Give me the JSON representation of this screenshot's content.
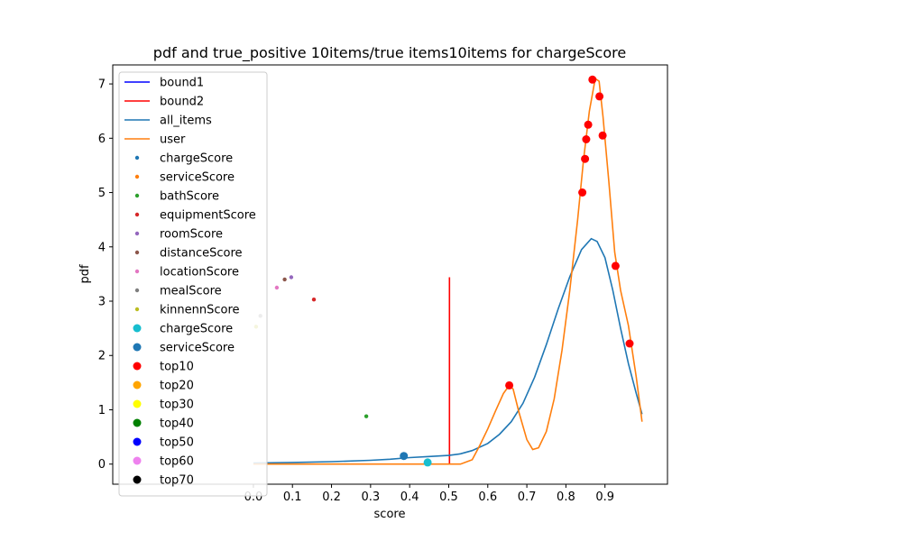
{
  "chart_data": {
    "type": "line",
    "title": "pdf and true_positive 10items/true items10items for chargeScore",
    "xlabel": "score",
    "ylabel": "pdf",
    "xlim": [
      -0.36,
      1.06
    ],
    "ylim": [
      -0.37,
      7.35
    ],
    "xticks": [
      0.0,
      0.1,
      0.2,
      0.3,
      0.4,
      0.5,
      0.6,
      0.7,
      0.8,
      0.9
    ],
    "yticks": [
      0,
      1,
      2,
      3,
      4,
      5,
      6,
      7
    ],
    "grid": false,
    "legend_position": "upper-left",
    "lines": [
      {
        "name": "bound1",
        "color": "#0000ff",
        "points": []
      },
      {
        "name": "bound2",
        "color": "#ff0000",
        "points": [
          [
            0.502,
            0.0
          ],
          [
            0.502,
            3.44
          ]
        ]
      },
      {
        "name": "all_items",
        "color": "#1f77b4",
        "points": [
          [
            0.0,
            0.02
          ],
          [
            0.1,
            0.03
          ],
          [
            0.2,
            0.045
          ],
          [
            0.3,
            0.07
          ],
          [
            0.35,
            0.09
          ],
          [
            0.4,
            0.12
          ],
          [
            0.45,
            0.14
          ],
          [
            0.5,
            0.16
          ],
          [
            0.53,
            0.19
          ],
          [
            0.56,
            0.25
          ],
          [
            0.6,
            0.38
          ],
          [
            0.63,
            0.55
          ],
          [
            0.66,
            0.78
          ],
          [
            0.69,
            1.12
          ],
          [
            0.72,
            1.6
          ],
          [
            0.75,
            2.2
          ],
          [
            0.78,
            2.85
          ],
          [
            0.81,
            3.45
          ],
          [
            0.84,
            3.95
          ],
          [
            0.865,
            4.15
          ],
          [
            0.88,
            4.1
          ],
          [
            0.9,
            3.8
          ],
          [
            0.92,
            3.2
          ],
          [
            0.94,
            2.5
          ],
          [
            0.96,
            1.85
          ],
          [
            0.98,
            1.3
          ],
          [
            0.995,
            0.92
          ]
        ]
      },
      {
        "name": "user",
        "color": "#ff7f0e",
        "points": [
          [
            0.0,
            0.0
          ],
          [
            0.1,
            0.0
          ],
          [
            0.2,
            0.0
          ],
          [
            0.3,
            0.0
          ],
          [
            0.4,
            0.0
          ],
          [
            0.5,
            0.0
          ],
          [
            0.53,
            0.0
          ],
          [
            0.56,
            0.08
          ],
          [
            0.58,
            0.35
          ],
          [
            0.6,
            0.65
          ],
          [
            0.62,
            0.98
          ],
          [
            0.64,
            1.3
          ],
          [
            0.655,
            1.45
          ],
          [
            0.665,
            1.38
          ],
          [
            0.68,
            0.95
          ],
          [
            0.7,
            0.45
          ],
          [
            0.715,
            0.27
          ],
          [
            0.73,
            0.3
          ],
          [
            0.75,
            0.6
          ],
          [
            0.77,
            1.2
          ],
          [
            0.79,
            2.1
          ],
          [
            0.81,
            3.2
          ],
          [
            0.83,
            4.5
          ],
          [
            0.845,
            5.6
          ],
          [
            0.86,
            6.5
          ],
          [
            0.875,
            7.1
          ],
          [
            0.885,
            7.05
          ],
          [
            0.895,
            6.4
          ],
          [
            0.91,
            5.2
          ],
          [
            0.925,
            3.9
          ],
          [
            0.94,
            3.2
          ],
          [
            0.96,
            2.55
          ],
          [
            0.98,
            1.6
          ],
          [
            0.995,
            0.78
          ]
        ]
      }
    ],
    "scatter_series": [
      {
        "name": "chargeScore",
        "color": "#1f77b4",
        "size": "small",
        "points": []
      },
      {
        "name": "serviceScore",
        "color": "#ff7f0e",
        "size": "small",
        "points": []
      },
      {
        "name": "bathScore",
        "color": "#2ca02c",
        "size": "small",
        "points": [
          [
            0.289,
            0.88
          ]
        ]
      },
      {
        "name": "equipmentScore",
        "color": "#d62728",
        "size": "small",
        "points": [
          [
            0.155,
            3.03
          ]
        ]
      },
      {
        "name": "roomScore",
        "color": "#9467bd",
        "size": "small",
        "points": [
          [
            0.097,
            3.44
          ]
        ]
      },
      {
        "name": "distanceScore",
        "color": "#8c564b",
        "size": "small",
        "points": [
          [
            0.08,
            3.4
          ]
        ]
      },
      {
        "name": "locationScore",
        "color": "#e377c2",
        "size": "small",
        "points": [
          [
            0.06,
            3.25
          ]
        ]
      },
      {
        "name": "mealScore",
        "color": "#7f7f7f",
        "size": "small",
        "points": [
          [
            0.018,
            2.73
          ]
        ]
      },
      {
        "name": "kinnennScore",
        "color": "#bcbd22",
        "size": "small",
        "points": [
          [
            0.007,
            2.53
          ]
        ]
      },
      {
        "name": "chargeScore",
        "color": "#17becf",
        "size": "large",
        "points": [
          [
            0.446,
            0.03
          ]
        ]
      },
      {
        "name": "serviceScore",
        "color": "#1f77b4",
        "size": "large",
        "points": [
          [
            0.385,
            0.15
          ]
        ]
      },
      {
        "name": "top10",
        "color": "#ff0000",
        "size": "large",
        "points": [
          [
            0.655,
            1.45
          ],
          [
            0.842,
            5.0
          ],
          [
            0.849,
            5.62
          ],
          [
            0.852,
            5.98
          ],
          [
            0.857,
            6.25
          ],
          [
            0.868,
            7.08
          ],
          [
            0.886,
            6.77
          ],
          [
            0.894,
            6.05
          ],
          [
            0.927,
            3.65
          ],
          [
            0.963,
            2.22
          ]
        ]
      },
      {
        "name": "top20",
        "color": "#ffa500",
        "size": "large",
        "points": []
      },
      {
        "name": "top30",
        "color": "#ffff00",
        "size": "large",
        "points": []
      },
      {
        "name": "top40",
        "color": "#008000",
        "size": "large",
        "points": []
      },
      {
        "name": "top50",
        "color": "#0000ff",
        "size": "large",
        "points": []
      },
      {
        "name": "top60",
        "color": "#ee82ee",
        "size": "large",
        "points": []
      },
      {
        "name": "top70",
        "color": "#000000",
        "size": "large",
        "points": []
      }
    ]
  }
}
